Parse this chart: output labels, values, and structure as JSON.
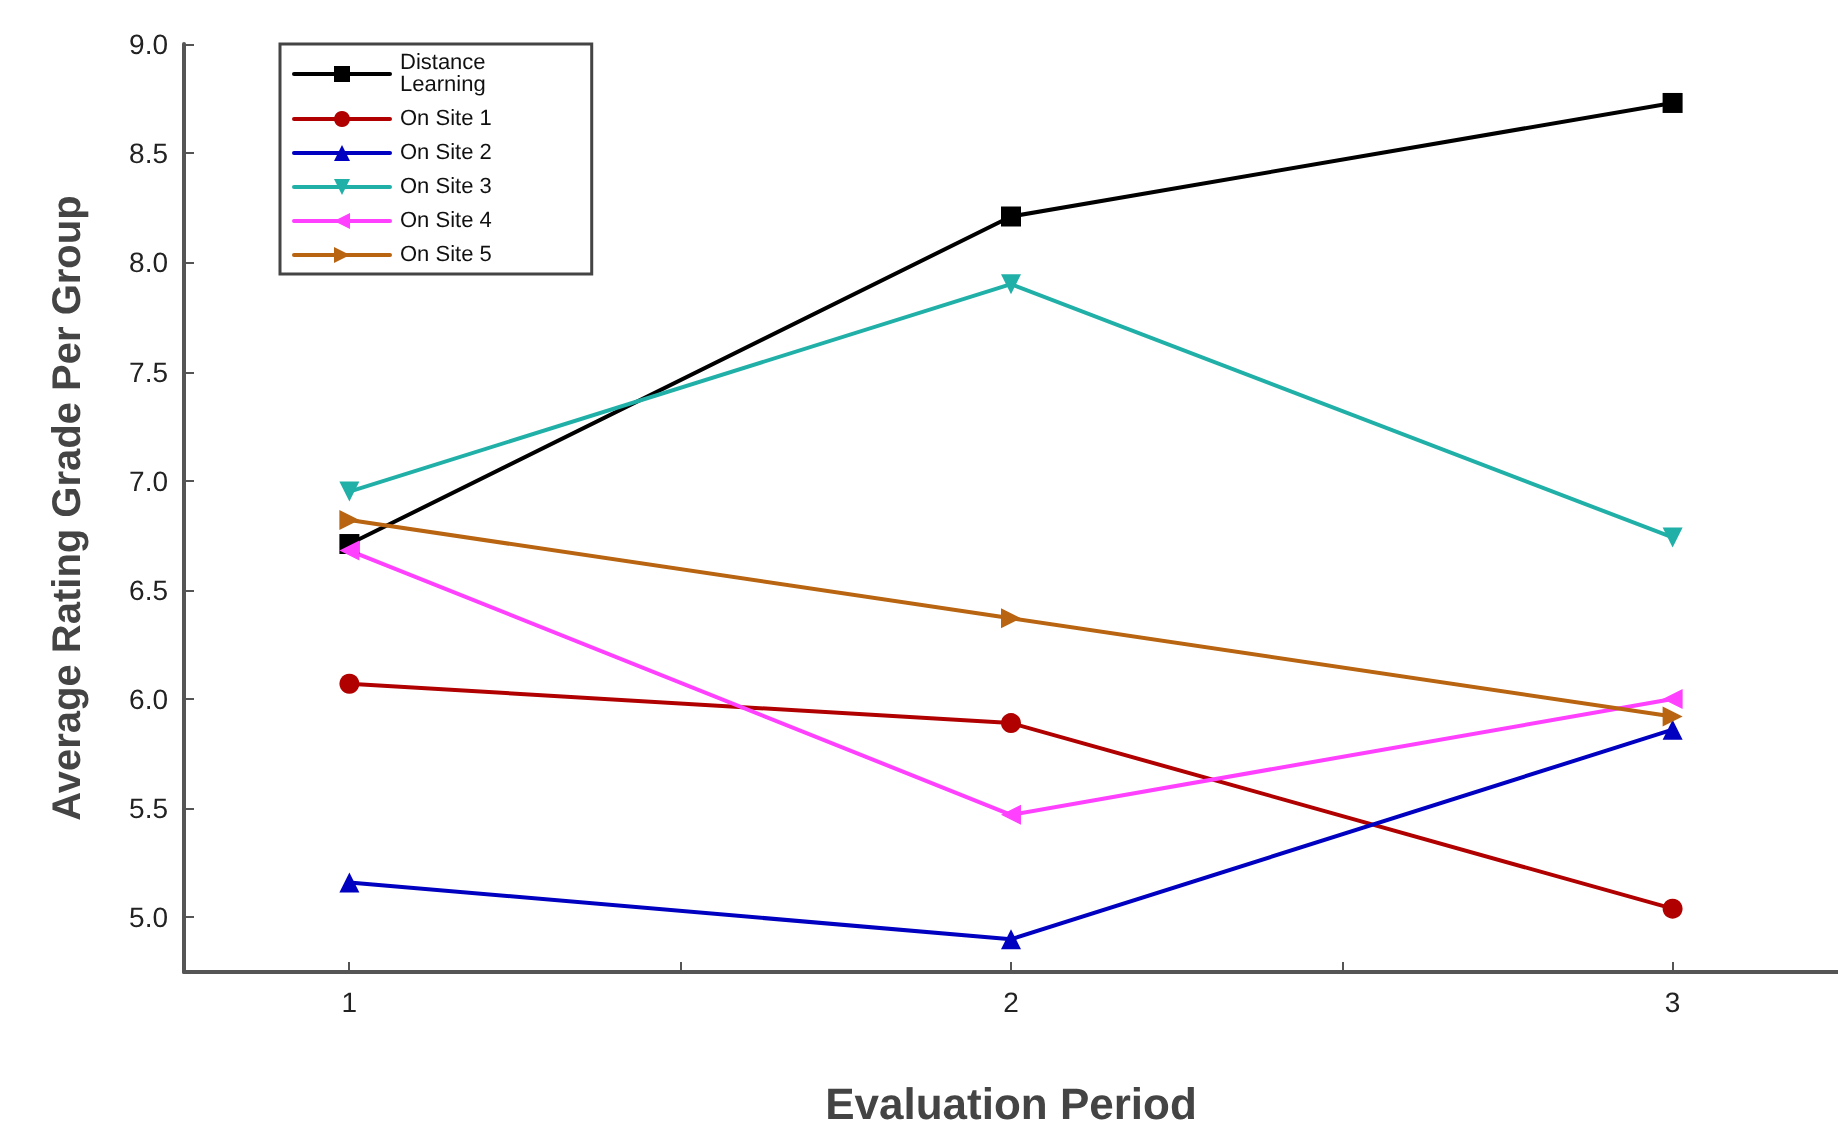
{
  "chart_data": {
    "type": "line",
    "xlabel": "Evaluation Period",
    "ylabel": "Average Rating Grade Per Group",
    "x": [
      1,
      2,
      3
    ],
    "xlim": [
      0.75,
      3.25
    ],
    "xticks": [
      1,
      {
        "value": 1.5,
        "label": null
      },
      2,
      {
        "value": 2.5,
        "label": null
      },
      3
    ],
    "ylim": [
      4.75,
      9.0
    ],
    "yticks": [
      {
        "value": 5,
        "label": "5.0"
      },
      {
        "value": 5.5,
        "label": "5.5"
      },
      {
        "value": 6,
        "label": "6.0"
      },
      {
        "value": 6.5,
        "label": "6.5"
      },
      {
        "value": 7,
        "label": "7.0"
      },
      {
        "value": 7.5,
        "label": "7.5"
      },
      {
        "value": 8,
        "label": "8.0"
      },
      {
        "value": 8.5,
        "label": "8.5"
      },
      {
        "value": 9,
        "label": "9.0"
      }
    ],
    "grid": false,
    "legend": "top left",
    "line_style": "solid",
    "series": [
      {
        "name": "Distance Learning",
        "color": "#000000",
        "marker": "square",
        "values": [
          6.71,
          8.21,
          8.73
        ]
      },
      {
        "name": "On Site 1",
        "color": "#b00000",
        "marker": "circle",
        "values": [
          6.07,
          5.89,
          5.04
        ]
      },
      {
        "name": "On Site 2",
        "color": "#0000c0",
        "marker": "triangle",
        "values": [
          5.16,
          4.9,
          5.86
        ]
      },
      {
        "name": "On Site 3",
        "color": "#20b0a8",
        "marker": "triangle-down",
        "values": [
          6.95,
          7.9,
          6.74
        ]
      },
      {
        "name": "On Site 4",
        "color": "#ff40ff",
        "marker": "triangle-left",
        "values": [
          6.68,
          5.47,
          6.0
        ]
      },
      {
        "name": "On Site 5",
        "color": "#b86410",
        "marker": "triangle-right",
        "values": [
          6.82,
          6.37,
          5.92
        ]
      }
    ]
  }
}
